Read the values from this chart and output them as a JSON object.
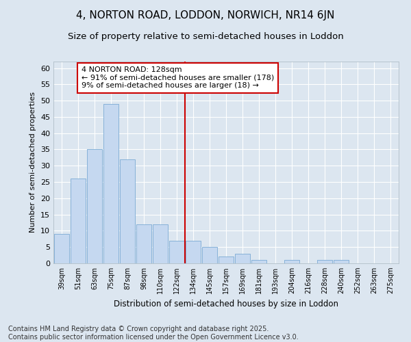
{
  "title": "4, NORTON ROAD, LODDON, NORWICH, NR14 6JN",
  "subtitle": "Size of property relative to semi-detached houses in Loddon",
  "xlabel": "Distribution of semi-detached houses by size in Loddon",
  "ylabel": "Number of semi-detached properties",
  "categories": [
    "39sqm",
    "51sqm",
    "63sqm",
    "75sqm",
    "87sqm",
    "98sqm",
    "110sqm",
    "122sqm",
    "134sqm",
    "145sqm",
    "157sqm",
    "169sqm",
    "181sqm",
    "193sqm",
    "204sqm",
    "216sqm",
    "228sqm",
    "240sqm",
    "252sqm",
    "263sqm",
    "275sqm"
  ],
  "values": [
    9,
    26,
    35,
    49,
    32,
    12,
    12,
    7,
    7,
    5,
    2,
    3,
    1,
    0,
    1,
    0,
    1,
    1,
    0,
    0,
    0
  ],
  "bar_color": "#c5d8f0",
  "bar_edge_color": "#7aaad4",
  "highlight_line_color": "#cc0000",
  "annotation_text": "4 NORTON ROAD: 128sqm\n← 91% of semi-detached houses are smaller (178)\n9% of semi-detached houses are larger (18) →",
  "annotation_box_color": "#ffffff",
  "annotation_box_edge_color": "#cc0000",
  "ylim": [
    0,
    62
  ],
  "yticks": [
    0,
    5,
    10,
    15,
    20,
    25,
    30,
    35,
    40,
    45,
    50,
    55,
    60
  ],
  "background_color": "#dce6f0",
  "plot_background_color": "#dce6f0",
  "grid_color": "#ffffff",
  "title_fontsize": 11,
  "subtitle_fontsize": 9.5,
  "footer_text": "Contains HM Land Registry data © Crown copyright and database right 2025.\nContains public sector information licensed under the Open Government Licence v3.0.",
  "footer_fontsize": 7
}
